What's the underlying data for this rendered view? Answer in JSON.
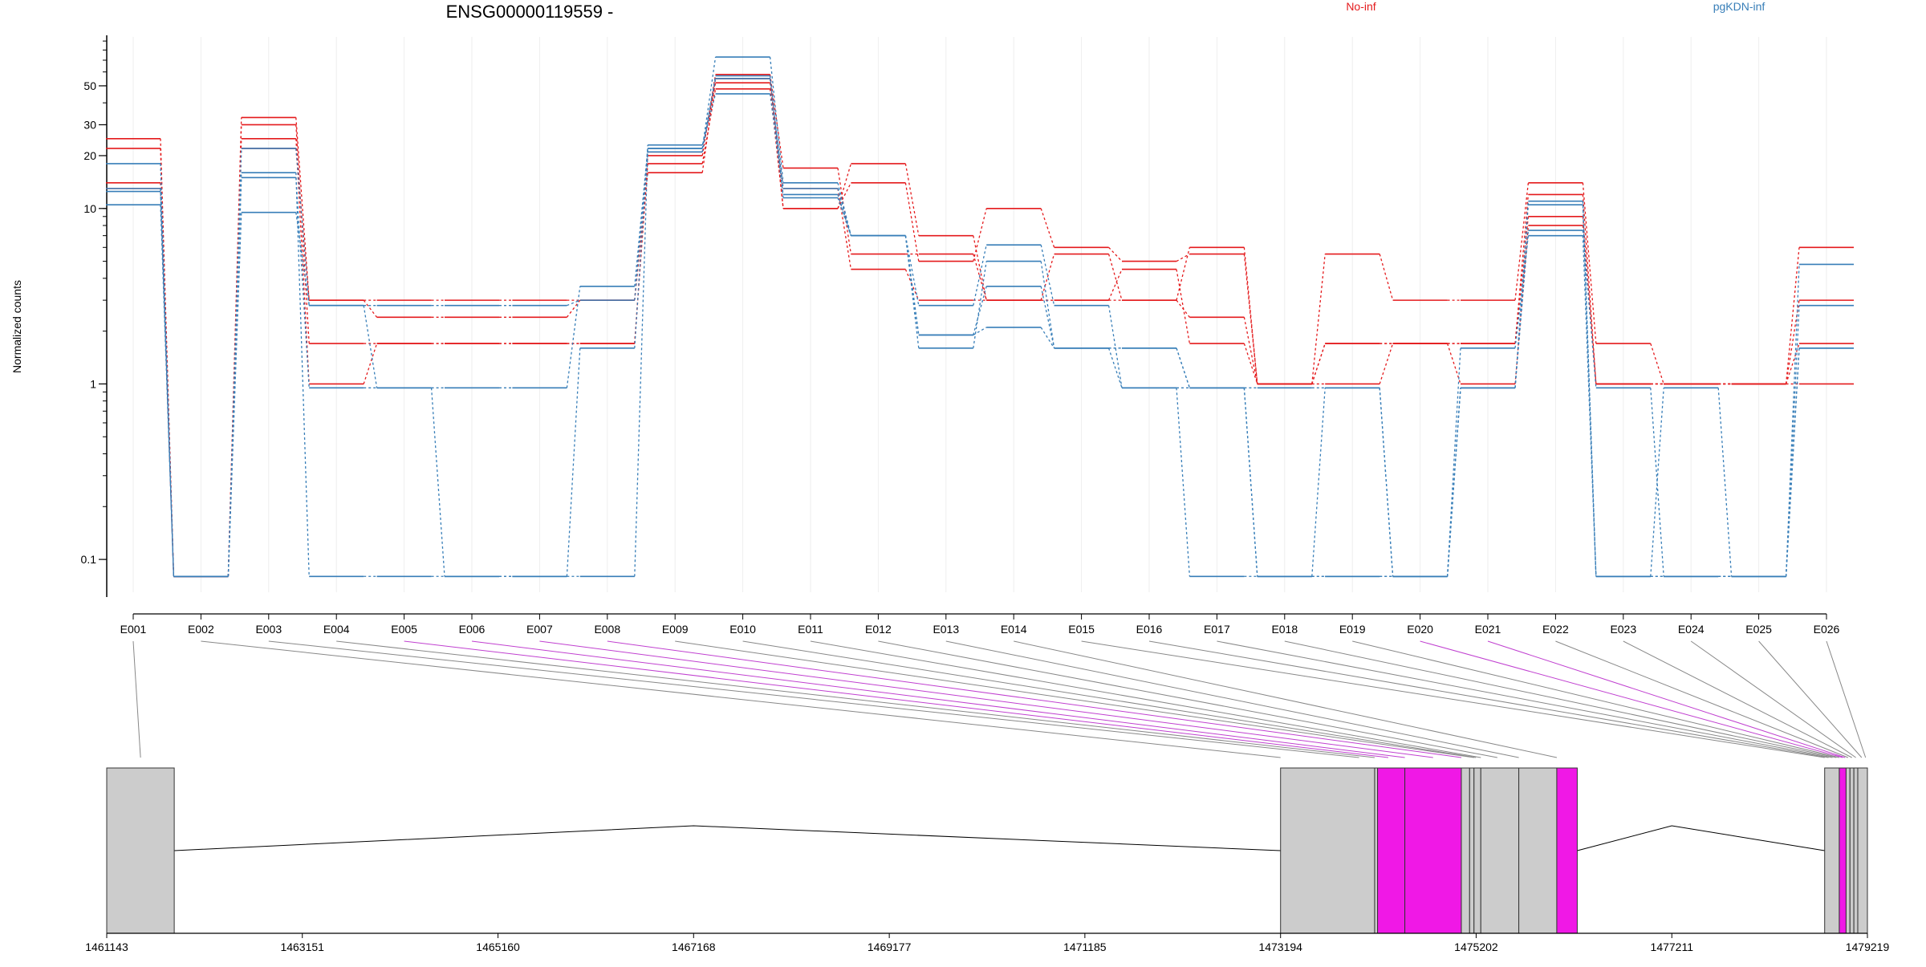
{
  "chart_data": {
    "type": "line",
    "title": "ENSG00000119559 -",
    "ylabel": "Normalized counts",
    "y_scale": "log",
    "y_ticks": [
      {
        "value": 0.1,
        "label": "0.1"
      },
      {
        "value": 1,
        "label": "1"
      },
      {
        "value": 10,
        "label": "10"
      },
      {
        "value": 20,
        "label": "20"
      },
      {
        "value": 30,
        "label": "30"
      },
      {
        "value": 50,
        "label": "50"
      }
    ],
    "ylim": [
      0.065,
      95
    ],
    "grid": "vertical",
    "legend": [
      {
        "label": "No-inf",
        "color": "#e41a1c"
      },
      {
        "label": "pgKDN-inf",
        "color": "#377eb8"
      }
    ],
    "categories": [
      "E001",
      "E002",
      "E003",
      "E004",
      "E005",
      "E006",
      "E007",
      "E008",
      "E009",
      "E010",
      "E011",
      "E012",
      "E013",
      "E014",
      "E015",
      "E016",
      "E017",
      "E018",
      "E019",
      "E020",
      "E021",
      "E022",
      "E023",
      "E024",
      "E025",
      "E026"
    ],
    "series": [
      {
        "group": "No-inf",
        "color": "#e41a1c",
        "values": [
          25,
          0.08,
          33,
          3,
          2.4,
          2.4,
          2.4,
          3,
          16,
          55,
          10,
          14,
          5,
          10,
          6,
          5,
          5.5,
          1,
          5.5,
          3,
          3,
          14,
          1.7,
          1,
          1,
          6
        ]
      },
      {
        "group": "No-inf",
        "color": "#e41a1c",
        "values": [
          22,
          0.08,
          30,
          1.7,
          1.7,
          1.7,
          1.7,
          1.7,
          18,
          48,
          10,
          18,
          7,
          3,
          5.5,
          3,
          2.4,
          1,
          1,
          1.7,
          1.7,
          9,
          1,
          1,
          1,
          3
        ]
      },
      {
        "group": "No-inf",
        "color": "#e41a1c",
        "values": [
          14,
          0.08,
          25,
          1,
          1.7,
          1.7,
          1.7,
          1.7,
          20,
          58,
          17,
          5.5,
          5.5,
          3,
          3,
          3,
          6,
          1,
          1.7,
          1.7,
          1,
          8,
          1,
          1,
          1,
          1
        ]
      },
      {
        "group": "No-inf",
        "color": "#e41a1c",
        "values": [
          13,
          0.08,
          22,
          3,
          3,
          3,
          3,
          3,
          21,
          52,
          13,
          4.5,
          3,
          3,
          3,
          4.5,
          1.7,
          1,
          1.7,
          1.7,
          1.7,
          12,
          1,
          1,
          1,
          1.7
        ]
      },
      {
        "group": "pgKDN-inf",
        "color": "#377eb8",
        "values": [
          18,
          0.08,
          22,
          2.8,
          0.95,
          0.95,
          0.95,
          3.6,
          22,
          73,
          14,
          7,
          2.8,
          6.2,
          2.8,
          0.95,
          0.95,
          0.08,
          0.95,
          0.08,
          0.95,
          11,
          0.08,
          0.95,
          0.08,
          2.8
        ]
      },
      {
        "group": "pgKDN-inf",
        "color": "#377eb8",
        "values": [
          10.5,
          0.08,
          15,
          0.95,
          0.95,
          0.08,
          0.08,
          1.6,
          23,
          45,
          12,
          7,
          1.9,
          2.1,
          1.6,
          0.95,
          0.08,
          0.08,
          0.08,
          0.08,
          1.6,
          7,
          0.08,
          0.08,
          0.08,
          1.6
        ]
      },
      {
        "group": "pgKDN-inf",
        "color": "#377eb8",
        "values": [
          12.5,
          0.08,
          16,
          0.08,
          0.08,
          0.08,
          0.08,
          0.08,
          22,
          55,
          13,
          7,
          1.6,
          5,
          1.6,
          1.6,
          0.95,
          0.08,
          0.08,
          0.08,
          0.95,
          7.5,
          0.95,
          0.08,
          0.08,
          1.6
        ]
      },
      {
        "group": "pgKDN-inf",
        "color": "#377eb8",
        "values": [
          13,
          0.08,
          9.5,
          2.8,
          2.8,
          2.8,
          2.8,
          3,
          21,
          57,
          11.5,
          7,
          1.9,
          3.6,
          1.6,
          1.6,
          0.95,
          0.95,
          0.95,
          0.08,
          0.95,
          10.5,
          0.08,
          0.08,
          0.08,
          4.8
        ]
      }
    ],
    "gene_model": {
      "coord_start": 1461143,
      "coord_end": 1479219,
      "coord_ticks": [
        {
          "value": 1461143,
          "label": "1461143"
        },
        {
          "value": 1463151,
          "label": "1463151"
        },
        {
          "value": 1465160,
          "label": "1465160"
        },
        {
          "value": 1467168,
          "label": "1467168"
        },
        {
          "value": 1469177,
          "label": "1469177"
        },
        {
          "value": 1471185,
          "label": "1471185"
        },
        {
          "value": 1473194,
          "label": "1473194"
        },
        {
          "value": 1475202,
          "label": "1475202"
        },
        {
          "value": 1477211,
          "label": "1477211"
        },
        {
          "value": 1479219,
          "label": "1479219"
        }
      ],
      "highlight_color": "#f018e6",
      "exon_color": "#cccccc",
      "exons": [
        {
          "id": "E001",
          "start": 1461143,
          "end": 1461836,
          "highlight": false
        },
        {
          "id": "E002",
          "start": 1473194,
          "end": 1474160,
          "highlight": false
        },
        {
          "id": "E003",
          "start": 1474160,
          "end": 1474190,
          "highlight": false
        },
        {
          "id": "E004",
          "start": 1474190,
          "end": 1474470,
          "highlight": true
        },
        {
          "id": "E005",
          "start": 1474470,
          "end": 1475050,
          "highlight": true
        },
        {
          "id": "E006",
          "start": 1475050,
          "end": 1475135,
          "highlight": false
        },
        {
          "id": "E007",
          "start": 1475135,
          "end": 1475180,
          "highlight": false
        },
        {
          "id": "E008",
          "start": 1475180,
          "end": 1475250,
          "highlight": false
        },
        {
          "id": "E009",
          "start": 1475250,
          "end": 1475640,
          "highlight": false
        },
        {
          "id": "E010",
          "start": 1475640,
          "end": 1476030,
          "highlight": false
        },
        {
          "id": "E011",
          "start": 1476030,
          "end": 1476240,
          "highlight": true
        },
        {
          "id": "E012",
          "start": 1478780,
          "end": 1478930,
          "highlight": false
        },
        {
          "id": "E013",
          "start": 1478930,
          "end": 1479000,
          "highlight": true
        },
        {
          "id": "E014",
          "start": 1479000,
          "end": 1479040,
          "highlight": false
        },
        {
          "id": "E015",
          "start": 1479040,
          "end": 1479080,
          "highlight": false
        },
        {
          "id": "E016",
          "start": 1479080,
          "end": 1479120,
          "highlight": false
        },
        {
          "id": "E017",
          "start": 1479120,
          "end": 1479219,
          "highlight": false
        }
      ],
      "intron_segments": [
        {
          "from": 1461836,
          "to": 1473194,
          "peak": 1467168
        },
        {
          "from": 1476240,
          "to": 1478780,
          "peak": 1477211
        }
      ],
      "connector_targets": [
        1461490,
        1473194,
        1474000,
        1474160,
        1474300,
        1474470,
        1474760,
        1475050,
        1475180,
        1475200,
        1475250,
        1475420,
        1475640,
        1476030,
        1478780,
        1478820,
        1478860,
        1478900,
        1478930,
        1478965,
        1478990,
        1479020,
        1479060,
        1479100,
        1479160,
        1479200
      ]
    }
  }
}
